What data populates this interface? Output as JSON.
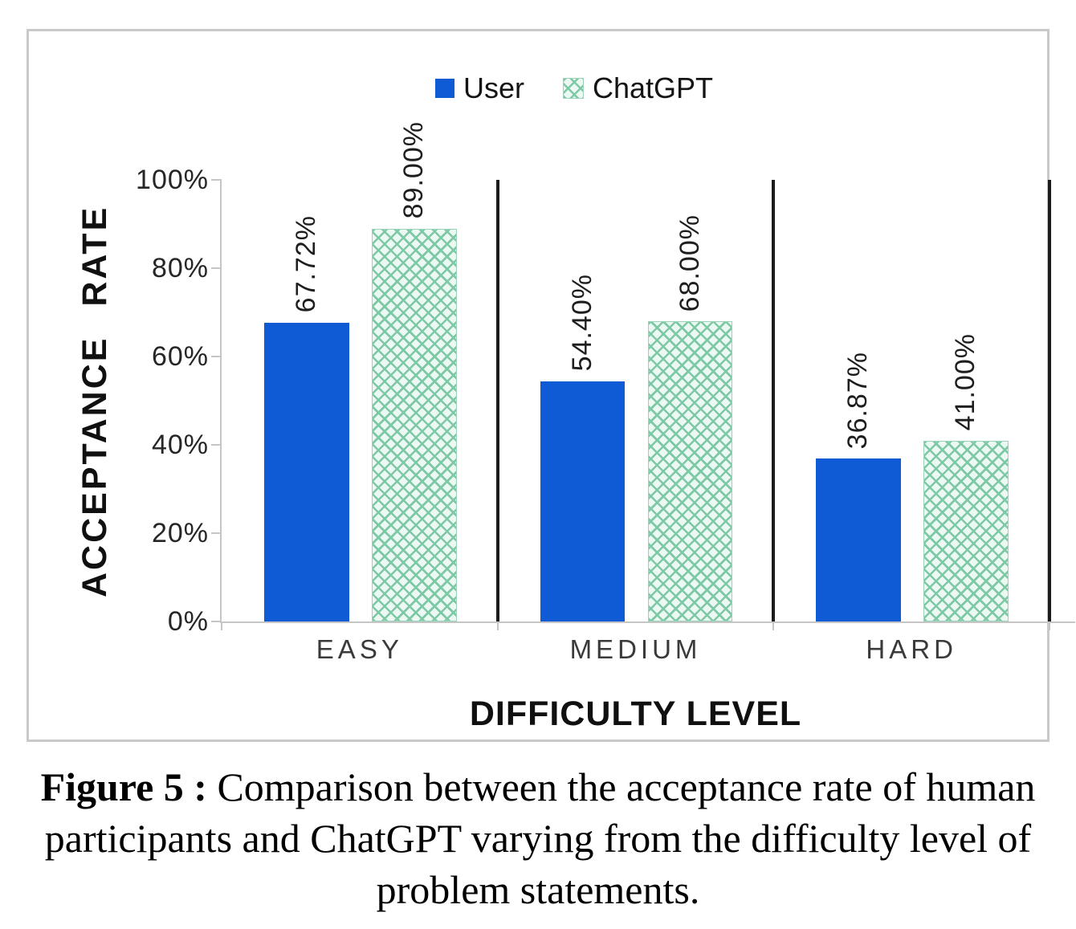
{
  "chart_data": {
    "type": "bar",
    "categories": [
      "EASY",
      "MEDIUM",
      "HARD"
    ],
    "series": [
      {
        "name": "User",
        "values": [
          67.72,
          54.4,
          36.87
        ],
        "labels": [
          "67.72%",
          "54.40%",
          "36.87%"
        ],
        "color": "#0f5ad5",
        "pattern": "solid"
      },
      {
        "name": "ChatGPT",
        "values": [
          89,
          68,
          41
        ],
        "labels": [
          "89.00%",
          "68.00%",
          "41.00%"
        ],
        "color": "#7dc8a5",
        "pattern": "crosshatch"
      }
    ],
    "xlabel": "DIFFICULTY LEVEL",
    "ylabel": "ACCEPTANCE RATE",
    "ylim": [
      0,
      100
    ],
    "yticks": [
      "0%",
      "20%",
      "40%",
      "60%",
      "80%",
      "100%"
    ],
    "legend_position": "top-center",
    "grid": false,
    "category_separators": true
  },
  "caption": {
    "prefix": "Figure 5 :",
    "body": " Comparison between the acceptance rate of human participants and ChatGPT varying from the difficulty level of problem statements."
  },
  "colors": {
    "user_bar": "#0f5ad5",
    "chatgpt_pattern_line": "#7dc8a5",
    "chatgpt_pattern_bg": "#ecf9f3",
    "axis": "#c5c5c5",
    "separator": "#1b1b1b"
  }
}
